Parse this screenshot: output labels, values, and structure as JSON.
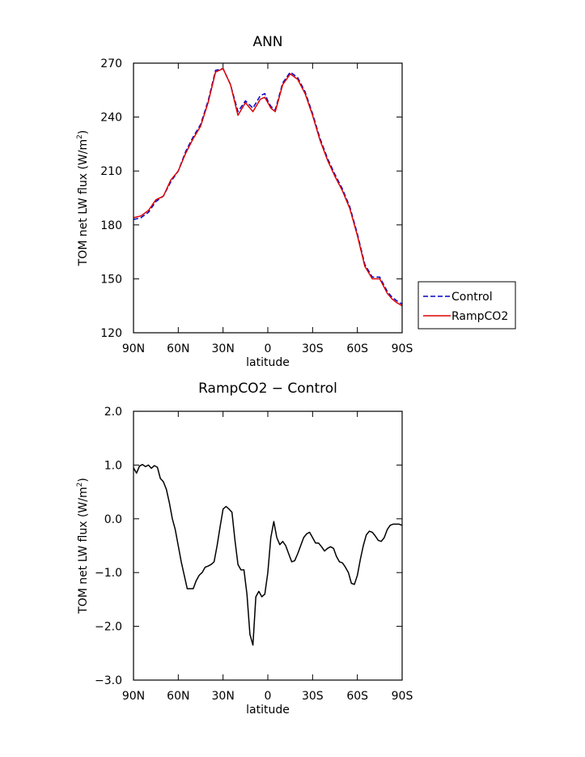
{
  "chart_data": [
    {
      "type": "line",
      "title": "ANN",
      "xlabel": "latitude",
      "ylabel": "TOM net LW flux (W/m",
      "ylabel_sup": "2",
      "ylabel_end": ")",
      "xlim": [
        90,
        -90
      ],
      "ylim": [
        120,
        270
      ],
      "x_ticks": [
        {
          "v": 90,
          "label": "90N"
        },
        {
          "v": 60,
          "label": "60N"
        },
        {
          "v": 30,
          "label": "30N"
        },
        {
          "v": 0,
          "label": "0"
        },
        {
          "v": -30,
          "label": "30S"
        },
        {
          "v": -60,
          "label": "60S"
        },
        {
          "v": -90,
          "label": "90S"
        }
      ],
      "y_ticks": [
        {
          "v": 120,
          "label": "120"
        },
        {
          "v": 150,
          "label": "150"
        },
        {
          "v": 180,
          "label": "180"
        },
        {
          "v": 210,
          "label": "210"
        },
        {
          "v": 240,
          "label": "240"
        },
        {
          "v": 270,
          "label": "270"
        }
      ],
      "legend": "outside-right",
      "series": [
        {
          "name": "Control",
          "color": "#0000cc",
          "dash": true,
          "x": [
            90,
            85,
            80,
            75,
            70,
            65,
            60,
            55,
            50,
            45,
            40,
            35,
            30,
            25,
            20,
            15,
            10,
            5,
            2,
            0,
            -2,
            -5,
            -10,
            -15,
            -20,
            -25,
            -30,
            -35,
            -40,
            -45,
            -50,
            -55,
            -60,
            -65,
            -70,
            -75,
            -80,
            -83,
            -86,
            -88,
            -90
          ],
          "y": [
            183,
            184,
            187,
            193,
            196,
            204,
            210,
            221,
            229,
            236,
            249,
            266,
            267,
            258,
            243,
            249,
            245,
            252,
            253,
            249,
            246,
            244,
            259,
            265,
            262,
            254,
            242,
            228,
            217,
            208,
            200,
            190,
            175,
            158,
            151,
            151,
            143,
            140,
            138,
            137,
            136
          ]
        },
        {
          "name": "RampCO2",
          "color": "#dd0000",
          "dash": false,
          "x": [
            90,
            85,
            80,
            75,
            70,
            65,
            60,
            55,
            50,
            45,
            40,
            35,
            30,
            25,
            20,
            15,
            10,
            5,
            2,
            0,
            -2,
            -5,
            -10,
            -15,
            -20,
            -25,
            -30,
            -35,
            -40,
            -45,
            -50,
            -55,
            -60,
            -65,
            -70,
            -75,
            -80,
            -83,
            -86,
            -88,
            -90
          ],
          "y": [
            184,
            185,
            188,
            194,
            196,
            205,
            210,
            220,
            228,
            235,
            248,
            265,
            267,
            258,
            241,
            248,
            243,
            250,
            251,
            248,
            245,
            243,
            258,
            264,
            261,
            253,
            241,
            227,
            216,
            207,
            199,
            189,
            174,
            157,
            150,
            150,
            142,
            139,
            137,
            136,
            135
          ]
        }
      ]
    },
    {
      "type": "line",
      "title": "RampCO2 − Control",
      "xlabel": "latitude",
      "ylabel": "TOM net LW flux (W/m",
      "ylabel_sup": "2",
      "ylabel_end": ")",
      "xlim": [
        90,
        -90
      ],
      "ylim": [
        -3,
        2
      ],
      "x_ticks": [
        {
          "v": 90,
          "label": "90N"
        },
        {
          "v": 60,
          "label": "60N"
        },
        {
          "v": 30,
          "label": "30N"
        },
        {
          "v": 0,
          "label": "0"
        },
        {
          "v": -30,
          "label": "30S"
        },
        {
          "v": -60,
          "label": "60S"
        },
        {
          "v": -90,
          "label": "90S"
        }
      ],
      "y_ticks": [
        {
          "v": -3,
          "label": "−3.0"
        },
        {
          "v": -2,
          "label": "−2.0"
        },
        {
          "v": -1,
          "label": "−1.0"
        },
        {
          "v": 0,
          "label": "0.0"
        },
        {
          "v": 1,
          "label": "1.0"
        },
        {
          "v": 2,
          "label": "2.0"
        }
      ],
      "series": [
        {
          "color": "#000000",
          "x": [
            90,
            88,
            86,
            84,
            82,
            80,
            78,
            76,
            74,
            72,
            70,
            68,
            66,
            64,
            62,
            60,
            58,
            56,
            54,
            52,
            50,
            48,
            46,
            44,
            42,
            40,
            38,
            36,
            34,
            32,
            30,
            28,
            26,
            24,
            22,
            20,
            18,
            16,
            14,
            12,
            10,
            8,
            6,
            4,
            2,
            0,
            -2,
            -4,
            -6,
            -8,
            -10,
            -12,
            -14,
            -16,
            -18,
            -20,
            -22,
            -24,
            -26,
            -28,
            -30,
            -32,
            -34,
            -36,
            -38,
            -40,
            -42,
            -44,
            -46,
            -48,
            -50,
            -52,
            -54,
            -56,
            -58,
            -60,
            -62,
            -64,
            -66,
            -68,
            -70,
            -72,
            -74,
            -76,
            -78,
            -80,
            -82,
            -84,
            -86,
            -88,
            -90
          ],
          "y": [
            0.95,
            0.85,
            0.98,
            1.01,
            0.97,
            1.0,
            0.94,
            0.99,
            0.96,
            0.75,
            0.69,
            0.55,
            0.3,
            0.0,
            -0.2,
            -0.5,
            -0.8,
            -1.05,
            -1.3,
            -1.3,
            -1.3,
            -1.15,
            -1.05,
            -1.0,
            -0.9,
            -0.88,
            -0.85,
            -0.8,
            -0.5,
            -0.15,
            0.18,
            0.23,
            0.18,
            0.12,
            -0.4,
            -0.85,
            -0.95,
            -0.95,
            -1.4,
            -2.15,
            -2.35,
            -1.45,
            -1.35,
            -1.45,
            -1.4,
            -1.0,
            -0.35,
            -0.05,
            -0.35,
            -0.48,
            -0.42,
            -0.5,
            -0.65,
            -0.8,
            -0.78,
            -0.65,
            -0.5,
            -0.35,
            -0.28,
            -0.25,
            -0.35,
            -0.45,
            -0.45,
            -0.52,
            -0.6,
            -0.55,
            -0.52,
            -0.55,
            -0.7,
            -0.8,
            -0.82,
            -0.9,
            -1.0,
            -1.2,
            -1.22,
            -1.05,
            -0.75,
            -0.5,
            -0.3,
            -0.23,
            -0.25,
            -0.32,
            -0.4,
            -0.42,
            -0.35,
            -0.2,
            -0.12,
            -0.1,
            -0.1,
            -0.1,
            -0.12
          ]
        }
      ]
    }
  ]
}
